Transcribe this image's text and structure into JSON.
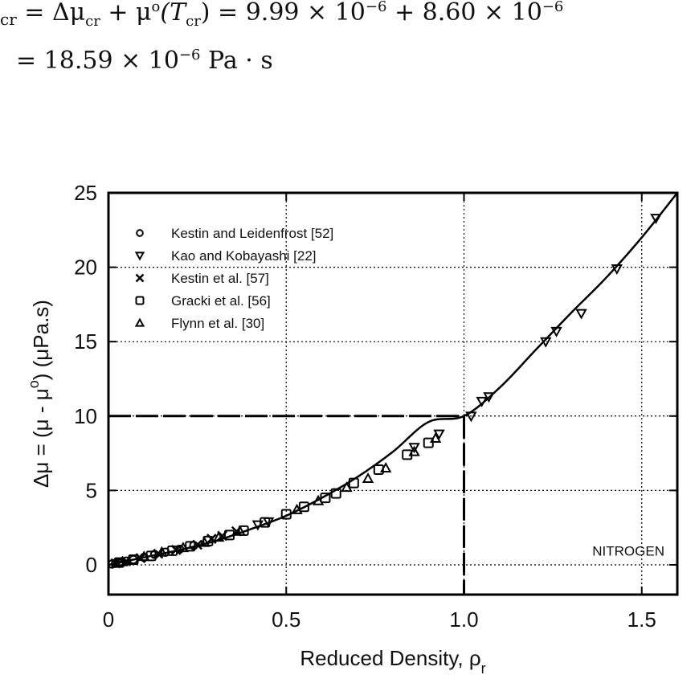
{
  "equations": {
    "line1_prefix": "cr",
    "line1_mid": " = Δμ",
    "line1_sub1": "cr",
    "line1_plus_mu": " + μ",
    "line1_o": "o",
    "line1_T": "(T",
    "line1_sub2": "cr",
    "line1_rest": ") = 9.99 × 10",
    "line1_exp1": "−6",
    "line1_rest2": " + 8.60 × 10",
    "line1_exp2": "−6",
    "line2_a": "= 18.59 × 10",
    "line2_exp": "−6",
    "line2_unit": "  Pa · s"
  },
  "chart_data": {
    "type": "scatter",
    "title": "",
    "xlabel": "Reduced Density,  ρ",
    "xlabel_sub": "r",
    "ylabel": "Δμ = (μ - μ",
    "ylabel_sup": "o",
    "ylabel_tail": ")  (μPa.s)",
    "xlim": [
      0,
      1.6
    ],
    "ylim": [
      -2,
      25
    ],
    "x_ticks": [
      "0",
      "0.5",
      "1.0",
      "1.5"
    ],
    "x_tick_values": [
      0,
      0.5,
      1.0,
      1.5
    ],
    "y_ticks": [
      "0",
      "5",
      "10",
      "15",
      "20",
      "25"
    ],
    "y_tick_values": [
      0,
      5,
      10,
      15,
      20,
      25
    ],
    "grid": "dotted at ticks",
    "legend_position": "top-left",
    "annotation": "NITROGEN",
    "critical_point": {
      "x": 1.0,
      "y": 10
    },
    "fit_curve": {
      "x": [
        0,
        0.1,
        0.2,
        0.3,
        0.4,
        0.5,
        0.6,
        0.7,
        0.8,
        0.9,
        1.0,
        1.1,
        1.2,
        1.3,
        1.4,
        1.5,
        1.6
      ],
      "y": [
        0,
        0.5,
        1.0,
        1.6,
        2.4,
        3.3,
        4.5,
        5.9,
        7.6,
        9.6,
        10.0,
        11.9,
        14.4,
        16.9,
        19.3,
        22.0,
        25.0
      ]
    },
    "series": [
      {
        "name": "Kestin and Leidenfrost [52]",
        "marker": "circle",
        "x": [
          0.01,
          0.02,
          0.03,
          0.05,
          0.07,
          0.1,
          0.13,
          0.16,
          0.2,
          0.24
        ],
        "y": [
          0.05,
          0.1,
          0.15,
          0.25,
          0.35,
          0.5,
          0.7,
          0.85,
          1.05,
          1.3
        ]
      },
      {
        "name": "Kao and Kobayashi [22]",
        "marker": "triangle-down",
        "x": [
          0.42,
          0.45,
          0.86,
          0.93,
          1.02,
          1.05,
          1.07,
          1.23,
          1.26,
          1.33,
          1.43,
          1.54
        ],
        "y": [
          2.7,
          2.9,
          7.9,
          8.8,
          10.0,
          11.0,
          11.3,
          15.0,
          15.7,
          16.9,
          19.9,
          23.3
        ]
      },
      {
        "name": "Kestin et al. [57]",
        "marker": "x",
        "x": [
          0.02,
          0.05,
          0.09,
          0.14,
          0.19,
          0.25,
          0.29,
          0.32,
          0.36
        ],
        "y": [
          0.1,
          0.25,
          0.45,
          0.75,
          1.0,
          1.35,
          1.75,
          1.95,
          2.25
        ]
      },
      {
        "name": "Gracki et al. [56]",
        "marker": "square",
        "x": [
          0.03,
          0.07,
          0.12,
          0.18,
          0.23,
          0.28,
          0.34,
          0.38,
          0.44,
          0.5,
          0.55,
          0.61,
          0.64,
          0.69,
          0.76,
          0.84,
          0.9
        ],
        "y": [
          0.15,
          0.35,
          0.6,
          0.95,
          1.25,
          1.6,
          2.0,
          2.3,
          2.85,
          3.4,
          3.9,
          4.5,
          4.8,
          5.5,
          6.4,
          7.4,
          8.2
        ]
      },
      {
        "name": "Flynn et al. [30]",
        "marker": "triangle-up",
        "x": [
          0.04,
          0.1,
          0.15,
          0.21,
          0.27,
          0.31,
          0.37,
          0.53,
          0.59,
          0.67,
          0.73,
          0.78,
          0.86,
          0.92
        ],
        "y": [
          0.2,
          0.55,
          0.85,
          1.15,
          1.5,
          1.85,
          2.25,
          3.7,
          4.3,
          5.2,
          5.8,
          6.5,
          7.6,
          8.5
        ]
      }
    ]
  }
}
